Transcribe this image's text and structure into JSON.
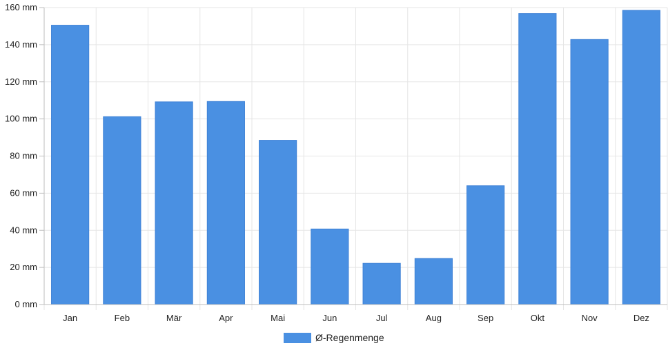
{
  "chart_data": {
    "type": "bar",
    "categories": [
      "Jan",
      "Feb",
      "Mär",
      "Apr",
      "Mai",
      "Jun",
      "Jul",
      "Aug",
      "Sep",
      "Okt",
      "Nov",
      "Dez"
    ],
    "series": [
      {
        "name": "Ø-Regenmenge",
        "values": [
          150.5,
          101.2,
          109.2,
          109.4,
          88.5,
          40.7,
          22.2,
          24.8,
          64.0,
          156.8,
          142.8,
          158.5
        ],
        "color": "#4a90e2"
      }
    ],
    "title": "",
    "xlabel": "",
    "ylabel": "",
    "ylim": [
      0,
      160
    ],
    "y_ticks": [
      0,
      20,
      40,
      60,
      80,
      100,
      120,
      140,
      160
    ],
    "y_tick_labels": [
      "0 mm",
      "20 mm",
      "40 mm",
      "60 mm",
      "80 mm",
      "100 mm",
      "120 mm",
      "140 mm",
      "160 mm"
    ],
    "grid": true,
    "legend_position": "bottom-center",
    "grid_color": "#e5e5e5",
    "axis_color": "#bdbdbd"
  }
}
